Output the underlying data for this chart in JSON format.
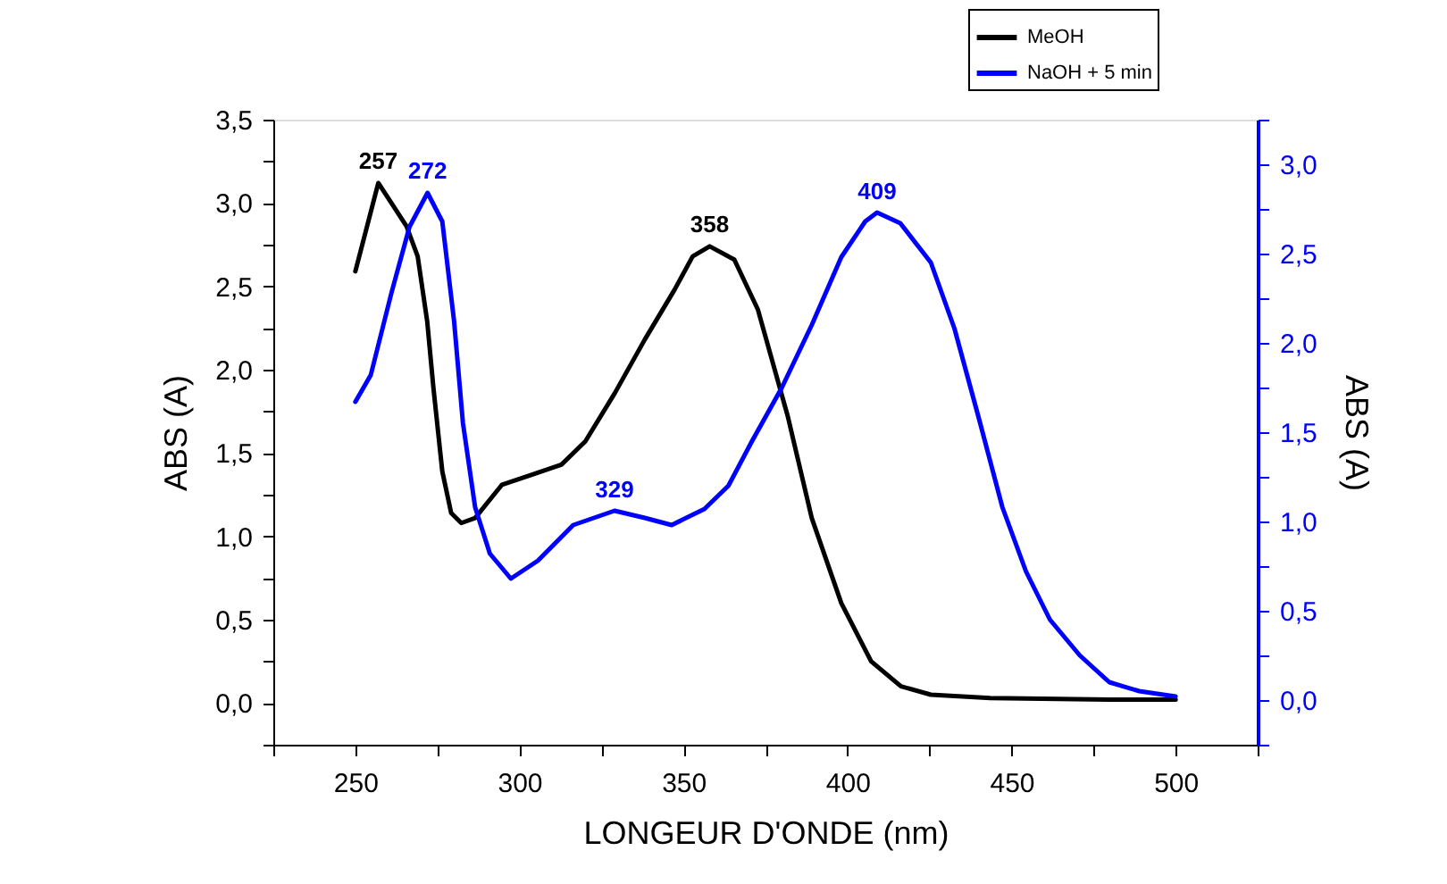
{
  "chart_data": {
    "type": "line",
    "xlabel": "LONGEUR D'ONDE (nm)",
    "ylabel": "ABS (A)",
    "y2label": "ABS (A)",
    "xlim": [
      225,
      525
    ],
    "ylim": [
      -0.25,
      3.5
    ],
    "y2lim": [
      -0.25,
      3.25
    ],
    "xticks": [
      {
        "value": 225,
        "label": null
      },
      250,
      {
        "value": 275,
        "label": null
      },
      300,
      {
        "value": 325,
        "label": null
      },
      350,
      {
        "value": 375,
        "label": null
      },
      400,
      {
        "value": 425,
        "label": null
      },
      450,
      {
        "value": 475,
        "label": null
      },
      500,
      {
        "value": 525,
        "label": null
      }
    ],
    "yticks": [
      {
        "value": -0.25,
        "label": null
      },
      {
        "value": 0,
        "label": "0,0"
      },
      {
        "value": 0.25,
        "label": null
      },
      {
        "value": 0.5,
        "label": "0,5"
      },
      {
        "value": 0.75,
        "label": null
      },
      {
        "value": 1,
        "label": "1,0"
      },
      {
        "value": 1.25,
        "label": null
      },
      {
        "value": 1.5,
        "label": "1,5"
      },
      {
        "value": 1.75,
        "label": null
      },
      {
        "value": 2,
        "label": "2,0"
      },
      {
        "value": 2.25,
        "label": null
      },
      {
        "value": 2.5,
        "label": "2,5"
      },
      {
        "value": 2.75,
        "label": null
      },
      {
        "value": 3,
        "label": "3,0"
      },
      {
        "value": 3.25,
        "label": null
      },
      {
        "value": 3.5,
        "label": "3,5"
      }
    ],
    "y2ticks": [
      {
        "value": -0.25,
        "label": null
      },
      {
        "value": 0,
        "label": "0,0"
      },
      {
        "value": 0.25,
        "label": null
      },
      {
        "value": 0.5,
        "label": "0,5"
      },
      {
        "value": 0.75,
        "label": null
      },
      {
        "value": 1,
        "label": "1,0"
      },
      {
        "value": 1.25,
        "label": null
      },
      {
        "value": 1.5,
        "label": "1,5"
      },
      {
        "value": 1.75,
        "label": null
      },
      {
        "value": 2,
        "label": "2,0"
      },
      {
        "value": 2.25,
        "label": null
      },
      {
        "value": 2.5,
        "label": "2,5"
      },
      {
        "value": 2.75,
        "label": null
      },
      {
        "value": 3,
        "label": "3,0"
      },
      {
        "value": 3.25,
        "label": null
      }
    ],
    "annotations": [
      {
        "text": "257",
        "x": 257,
        "y": 3.12
      },
      {
        "text": "272",
        "x": 272,
        "y": 3.06
      },
      {
        "text": "329",
        "x": 329,
        "y": 1.15
      },
      {
        "text": "358",
        "x": 358,
        "y": 2.74
      },
      {
        "text": "409",
        "x": 409,
        "y": 2.94
      }
    ],
    "grid": false,
    "legend": "top right",
    "marker": "none",
    "line_style": "solid",
    "series": [
      {
        "name": "MeOH",
        "color": "#000000",
        "x": [
          250,
          257,
          265.6,
          269,
          271.9,
          273.8,
          276.5,
          279.2,
          282.3,
          286.5,
          294.7,
          303.8,
          312.8,
          320.1,
          329.1,
          338.2,
          347.3,
          352.8,
          358,
          365.5,
          372.7,
          381.8,
          389.1,
          398.1,
          407.2,
          416.3,
          425.4,
          443.5,
          479.8,
          500
        ],
        "values": [
          2.59,
          3.12,
          2.86,
          2.68,
          2.29,
          1.89,
          1.39,
          1.14,
          1.08,
          1.11,
          1.31,
          1.37,
          1.43,
          1.57,
          1.86,
          2.18,
          2.48,
          2.68,
          2.74,
          2.66,
          2.36,
          1.72,
          1.11,
          0.6,
          0.25,
          0.1,
          0.05,
          0.03,
          0.02,
          0.02
        ]
      },
      {
        "name": "NaOH + 5 min",
        "color": "#0000ff",
        "axis": "y2",
        "x": [
          250,
          254.7,
          261,
          266.5,
          272,
          276.5,
          280.1,
          282.8,
          286.5,
          291,
          297.4,
          305.6,
          316.4,
          329,
          338.2,
          346.4,
          356.4,
          363.7,
          370.9,
          380,
          389.1,
          398.1,
          405.4,
          409,
          416.1,
          425.4,
          432.6,
          440,
          447.2,
          454.4,
          461.7,
          470.8,
          479.8,
          488.9,
          500
        ],
        "values": [
          1.67,
          1.82,
          2.28,
          2.65,
          2.84,
          2.68,
          2.12,
          1.55,
          1.08,
          0.82,
          0.68,
          0.78,
          0.98,
          1.06,
          1.02,
          0.98,
          1.07,
          1.2,
          1.45,
          1.75,
          2.1,
          2.48,
          2.68,
          2.73,
          2.67,
          2.45,
          2.08,
          1.58,
          1.08,
          0.72,
          0.45,
          0.25,
          0.1,
          0.05,
          0.02
        ]
      }
    ]
  }
}
